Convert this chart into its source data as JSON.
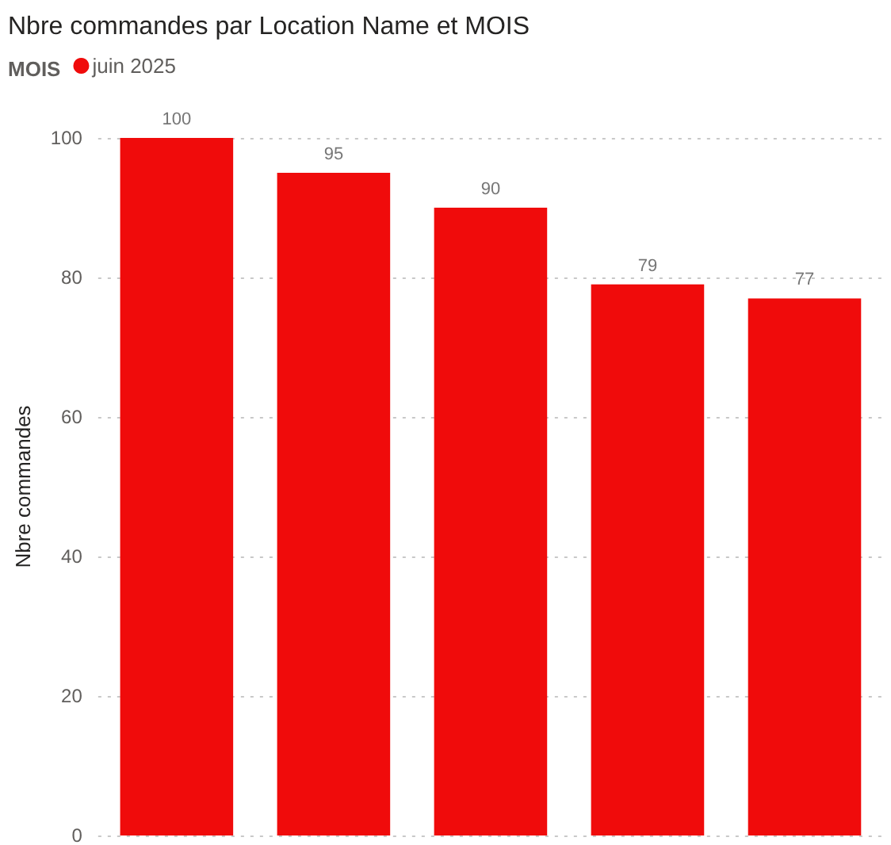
{
  "chart_data": {
    "type": "bar",
    "title": "Nbre commandes par Location Name et MOIS",
    "ylabel": "Nbre commandes",
    "legend_title": "MOIS",
    "categories": [
      null,
      null,
      null,
      null,
      null
    ],
    "series": [
      {
        "name": "juin 2025",
        "color": "#f00b0b",
        "values": [
          100,
          95,
          90,
          79,
          77
        ]
      }
    ],
    "ylim": [
      0,
      100
    ],
    "yticks": [
      0,
      20,
      40,
      60,
      80,
      100
    ],
    "grid": "y",
    "legend": "top left",
    "data_labels": true,
    "tick_labels": "y"
  }
}
